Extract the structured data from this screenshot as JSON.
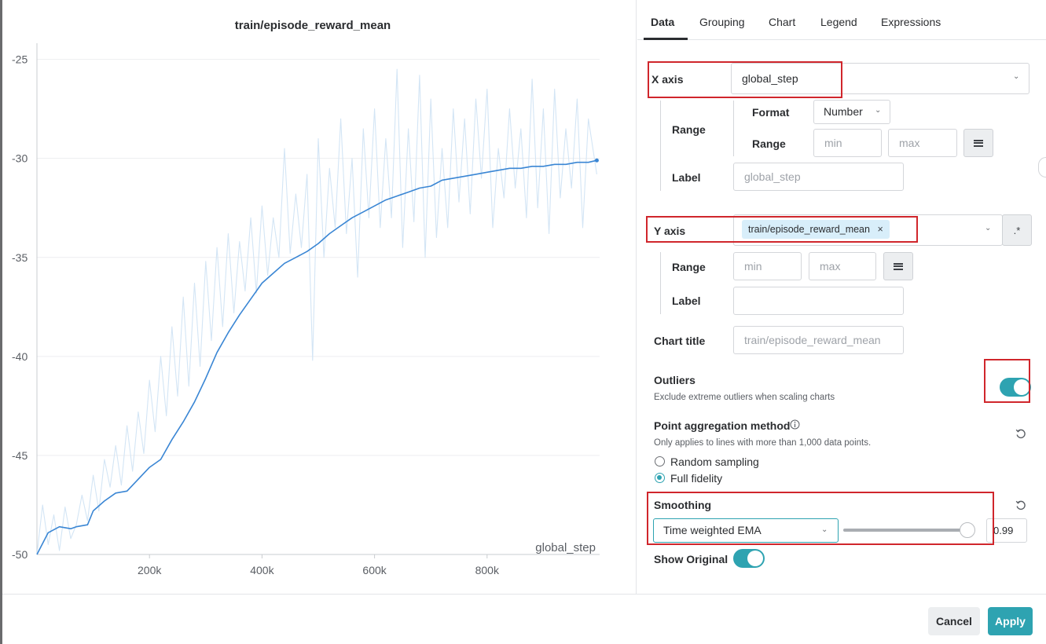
{
  "tabs": [
    {
      "label": "Data",
      "active": true
    },
    {
      "label": "Grouping"
    },
    {
      "label": "Chart"
    },
    {
      "label": "Legend"
    },
    {
      "label": "Expressions"
    }
  ],
  "x_axis": {
    "label": "X axis",
    "value": "global_step",
    "format_label": "Format",
    "format_value": "Number",
    "range_label": "Range",
    "range_sub_label": "Range",
    "range_min_placeholder": "min",
    "range_max_placeholder": "max",
    "axis_label_label": "Label",
    "axis_label_placeholder": "global_step"
  },
  "y_axis": {
    "label": "Y axis",
    "chip": "train/episode_reward_mean",
    "chip_remove": "×",
    "regex_button": ".*",
    "range_label": "Range",
    "range_min_placeholder": "min",
    "range_max_placeholder": "max",
    "axis_label_label": "Label",
    "axis_label_value": ""
  },
  "chart_title": {
    "label": "Chart title",
    "placeholder": "train/episode_reward_mean"
  },
  "outliers": {
    "label": "Outliers",
    "description": "Exclude extreme outliers when scaling charts",
    "enabled": true
  },
  "point_aggregation": {
    "label": "Point aggregation method",
    "info_icon": "info-icon",
    "description": "Only applies to lines with more than 1,000 data points.",
    "options": [
      "Random sampling",
      "Full fidelity"
    ],
    "selected": "Full fidelity"
  },
  "smoothing": {
    "label": "Smoothing",
    "method": "Time weighted EMA",
    "value": "0.99",
    "slider_fraction": 0.99
  },
  "show_original": {
    "label": "Show Original",
    "enabled": true
  },
  "footer": {
    "cancel": "Cancel",
    "apply": "Apply"
  },
  "colors": {
    "accent": "#2ea3b1",
    "smoothed_line": "#3a86d4",
    "original_line": "#d3e5f5",
    "highlight": "#d0262c"
  },
  "chart_data": {
    "type": "line",
    "title": "train/episode_reward_mean",
    "xlabel": "global_step",
    "ylabel": "",
    "xlim": [
      0,
      1000000
    ],
    "ylim": [
      -50,
      -24.5
    ],
    "x_ticks": [
      200000,
      400000,
      600000,
      800000
    ],
    "x_tick_labels": [
      "200k",
      "400k",
      "600k",
      "800k"
    ],
    "y_ticks": [
      -25,
      -30,
      -35,
      -40,
      -45,
      -50
    ],
    "y_tick_labels": [
      "-25",
      "-30",
      "-35",
      "-40",
      "-45",
      "-50"
    ],
    "grid": true,
    "series": [
      {
        "name": "",
        "role": "smoothed",
        "x": [
          0,
          20000,
          40000,
          60000,
          70000,
          90000,
          100000,
          120000,
          140000,
          160000,
          180000,
          200000,
          220000,
          240000,
          260000,
          280000,
          300000,
          320000,
          340000,
          360000,
          380000,
          400000,
          420000,
          440000,
          460000,
          480000,
          500000,
          520000,
          540000,
          560000,
          580000,
          600000,
          620000,
          640000,
          660000,
          680000,
          700000,
          720000,
          740000,
          760000,
          780000,
          800000,
          820000,
          840000,
          860000,
          880000,
          900000,
          920000,
          940000,
          960000,
          980000,
          995000
        ],
        "y": [
          -50.0,
          -48.9,
          -48.6,
          -48.7,
          -48.6,
          -48.5,
          -47.8,
          -47.3,
          -46.9,
          -46.8,
          -46.2,
          -45.6,
          -45.2,
          -44.2,
          -43.3,
          -42.3,
          -41.1,
          -39.8,
          -38.8,
          -37.9,
          -37.1,
          -36.3,
          -35.8,
          -35.3,
          -35.0,
          -34.7,
          -34.3,
          -33.8,
          -33.4,
          -33.0,
          -32.7,
          -32.4,
          -32.1,
          -31.9,
          -31.7,
          -31.5,
          -31.4,
          -31.1,
          -31.0,
          -30.9,
          -30.8,
          -30.7,
          -30.6,
          -30.5,
          -30.5,
          -30.4,
          -30.4,
          -30.3,
          -30.3,
          -30.2,
          -30.2,
          -30.1
        ]
      },
      {
        "name": "",
        "role": "original",
        "x": [
          0,
          10000,
          20000,
          30000,
          40000,
          50000,
          60000,
          70000,
          80000,
          90000,
          100000,
          110000,
          120000,
          130000,
          140000,
          150000,
          160000,
          170000,
          180000,
          190000,
          200000,
          210000,
          220000,
          230000,
          240000,
          250000,
          260000,
          270000,
          280000,
          290000,
          300000,
          310000,
          320000,
          330000,
          340000,
          350000,
          360000,
          370000,
          380000,
          390000,
          400000,
          410000,
          420000,
          430000,
          440000,
          450000,
          460000,
          470000,
          480000,
          490000,
          500000,
          510000,
          520000,
          530000,
          540000,
          550000,
          560000,
          570000,
          580000,
          590000,
          600000,
          610000,
          620000,
          630000,
          640000,
          650000,
          660000,
          670000,
          680000,
          690000,
          700000,
          710000,
          720000,
          730000,
          740000,
          750000,
          760000,
          770000,
          780000,
          790000,
          800000,
          810000,
          820000,
          830000,
          840000,
          850000,
          860000,
          870000,
          880000,
          890000,
          900000,
          910000,
          920000,
          930000,
          940000,
          950000,
          960000,
          970000,
          980000,
          995000
        ],
        "y": [
          -50.0,
          -47.5,
          -49.5,
          -48.0,
          -49.8,
          -47.6,
          -49.2,
          -48.5,
          -47.0,
          -48.3,
          -46.0,
          -47.8,
          -45.2,
          -46.6,
          -44.5,
          -46.5,
          -43.5,
          -45.8,
          -42.8,
          -44.9,
          -41.2,
          -43.8,
          -40.0,
          -43.0,
          -38.5,
          -42.0,
          -37.0,
          -41.5,
          -36.3,
          -40.5,
          -35.2,
          -39.2,
          -34.5,
          -38.5,
          -33.8,
          -37.8,
          -34.2,
          -36.7,
          -33.0,
          -36.8,
          -32.4,
          -35.9,
          -33.0,
          -35.0,
          -29.5,
          -34.8,
          -31.8,
          -34.5,
          -30.8,
          -40.2,
          -29.0,
          -35.0,
          -30.5,
          -33.5,
          -28.0,
          -33.8,
          -30.0,
          -36.0,
          -28.5,
          -33.0,
          -27.5,
          -33.5,
          -29.0,
          -33.0,
          -25.5,
          -34.5,
          -28.5,
          -33.2,
          -25.8,
          -35.0,
          -27.0,
          -34.0,
          -29.5,
          -33.5,
          -27.5,
          -32.2,
          -28.0,
          -32.8,
          -27.0,
          -31.0,
          -26.5,
          -33.5,
          -29.5,
          -32.0,
          -27.5,
          -31.5,
          -28.5,
          -33.0,
          -26.0,
          -32.5,
          -27.5,
          -33.8,
          -26.5,
          -32.0,
          -28.5,
          -31.5,
          -27.0,
          -33.5,
          -28.0,
          -30.8
        ]
      }
    ]
  }
}
